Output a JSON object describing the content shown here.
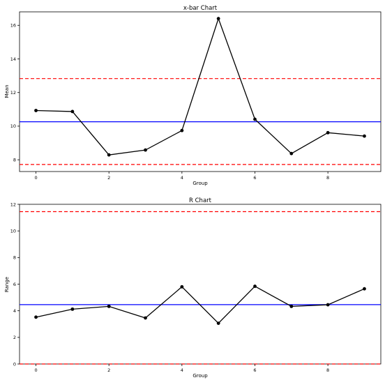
{
  "colors": {
    "center_line": "#0000ff",
    "control_limit": "#ff0000",
    "series": "#000000"
  },
  "chart_data": [
    {
      "type": "line",
      "title": "x-bar Chart",
      "xlabel": "Group",
      "ylabel": "Mean",
      "x": [
        0,
        1,
        2,
        3,
        4,
        5,
        6,
        7,
        8,
        9
      ],
      "values": [
        10.93,
        10.87,
        8.29,
        8.58,
        9.74,
        16.4,
        10.41,
        8.37,
        9.61,
        9.41
      ],
      "center_line": 10.26,
      "upper_control_limit": 12.83,
      "lower_control_limit": 7.72,
      "xlim": [
        -0.45,
        9.45
      ],
      "ylim": [
        7.3,
        16.8
      ],
      "xticks": [
        0,
        2,
        4,
        6,
        8
      ],
      "yticks": [
        8,
        10,
        12,
        14,
        16
      ],
      "grid": false,
      "markers": true
    },
    {
      "type": "line",
      "title": "R Chart",
      "xlabel": "Group",
      "ylabel": "Range",
      "x": [
        0,
        1,
        2,
        3,
        4,
        5,
        6,
        7,
        8,
        9
      ],
      "values": [
        3.52,
        4.12,
        4.33,
        3.46,
        5.8,
        3.06,
        5.84,
        4.33,
        4.45,
        5.65
      ],
      "center_line": 4.46,
      "upper_control_limit": 11.45,
      "lower_control_limit": 0,
      "xlim": [
        -0.45,
        9.45
      ],
      "ylim": [
        0,
        12
      ],
      "xticks": [
        0,
        2,
        4,
        6,
        8
      ],
      "yticks": [
        0,
        2,
        4,
        6,
        8,
        10,
        12
      ],
      "grid": false,
      "markers": true
    }
  ]
}
